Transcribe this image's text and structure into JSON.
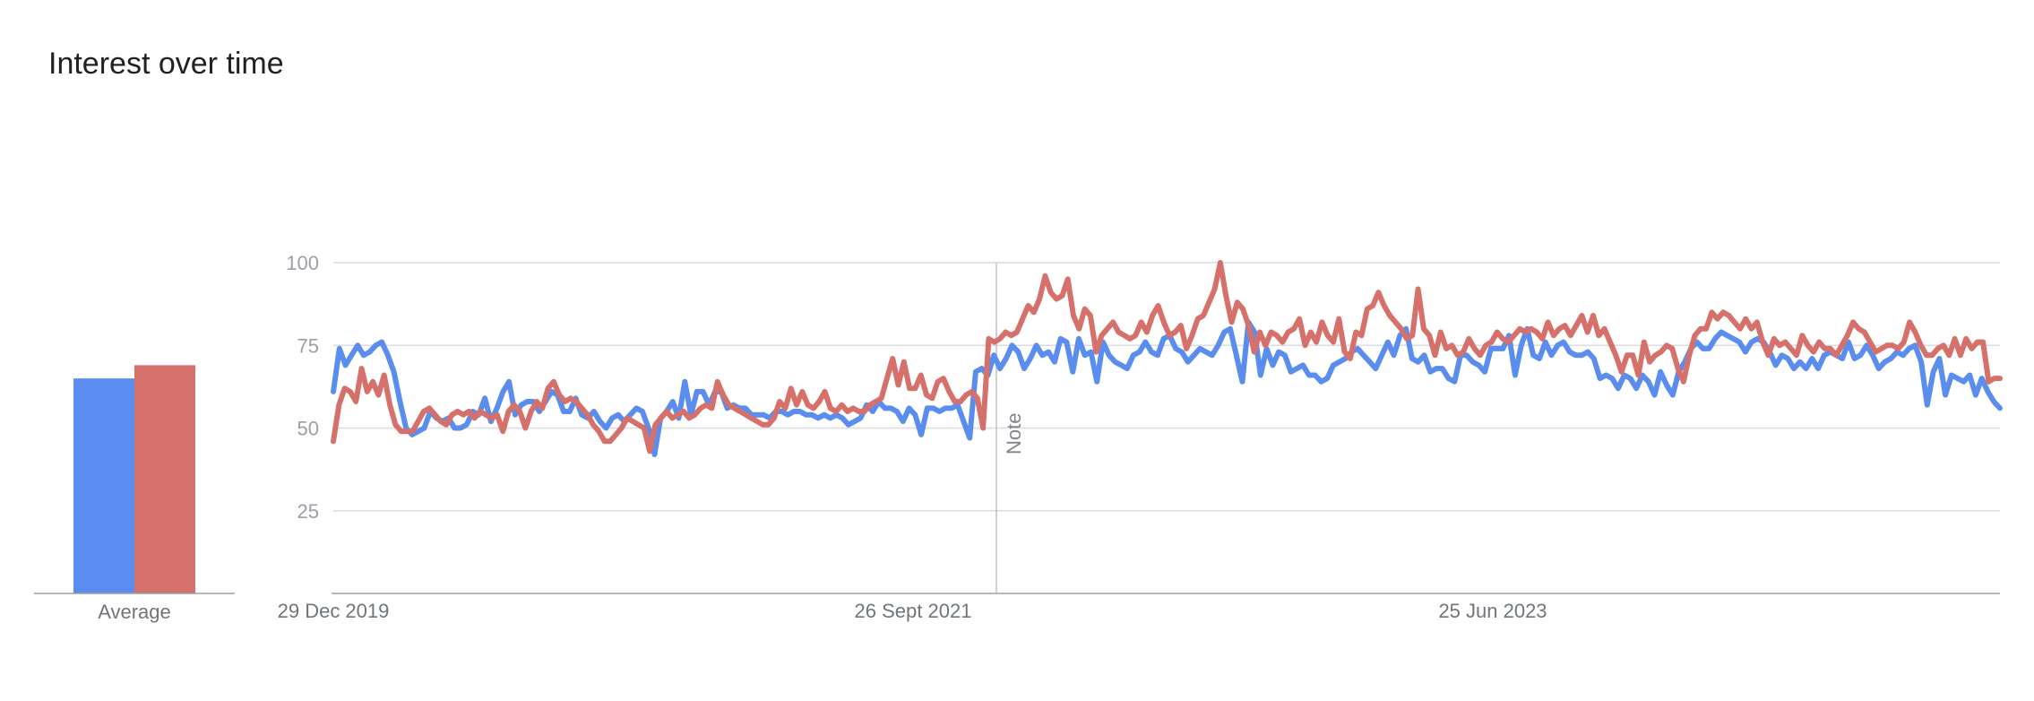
{
  "title": "Interest over time",
  "average_label": "Average",
  "note_label": "Note",
  "colors": {
    "series1": "#5b8def",
    "series2": "#d5706a",
    "grid": "#dadce0",
    "axis": "#9aa0a6"
  },
  "chart_data": {
    "type": "line",
    "title": "Interest over time",
    "x_start": "29 Dec 2019",
    "x_tick_labels": [
      "29 Dec 2019",
      "26 Sept 2021",
      "25 Jun 2023"
    ],
    "y_ticks": [
      25,
      50,
      75,
      100
    ],
    "ylim": [
      0,
      100
    ],
    "note_at": "Jan 2022",
    "averages": [
      65,
      69
    ],
    "series": [
      {
        "color": "#5b8def",
        "values": [
          61,
          74,
          69,
          72,
          75,
          72,
          73,
          75,
          76,
          72,
          67,
          58,
          50,
          48,
          49,
          50,
          55,
          53,
          52,
          53,
          50,
          50,
          51,
          55,
          54,
          59,
          52,
          56,
          61,
          64,
          54,
          57,
          58,
          58,
          55,
          58,
          61,
          60,
          55,
          55,
          59,
          54,
          53,
          55,
          52,
          50,
          53,
          54,
          52,
          54,
          56,
          55,
          50,
          42,
          53,
          55,
          58,
          53,
          64,
          54,
          61,
          61,
          57,
          61,
          61,
          56,
          57,
          56,
          56,
          54,
          54,
          54,
          53,
          55,
          55,
          54,
          55,
          55,
          54,
          54,
          53,
          54,
          53,
          54,
          53,
          51,
          52,
          53,
          57,
          55,
          58,
          56,
          56,
          55,
          52,
          56,
          54,
          48,
          56,
          56,
          55,
          56,
          56,
          57,
          52,
          47,
          67,
          68,
          66,
          72,
          68,
          71,
          75,
          73,
          68,
          71,
          75,
          72,
          73,
          70,
          77,
          76,
          67,
          77,
          72,
          73,
          64,
          76,
          72,
          70,
          69,
          68,
          72,
          73,
          76,
          73,
          72,
          77,
          78,
          74,
          73,
          70,
          72,
          74,
          73,
          72,
          75,
          79,
          80,
          72,
          64,
          82,
          79,
          66,
          74,
          69,
          73,
          72,
          67,
          68,
          69,
          66,
          66,
          64,
          65,
          69,
          70,
          71,
          73,
          74,
          72,
          70,
          68,
          72,
          76,
          72,
          78,
          80,
          71,
          70,
          72,
          67,
          68,
          68,
          65,
          64,
          72,
          72,
          70,
          69,
          67,
          74,
          74,
          74,
          78,
          66,
          75,
          80,
          72,
          71,
          76,
          72,
          75,
          76,
          73,
          72,
          72,
          73,
          71,
          65,
          66,
          65,
          62,
          66,
          65,
          62,
          66,
          64,
          60,
          67,
          63,
          60,
          67,
          70,
          74,
          76,
          74,
          74,
          77,
          79,
          78,
          77,
          76,
          73,
          76,
          77,
          76,
          73,
          69,
          72,
          71,
          68,
          70,
          68,
          71,
          68,
          72,
          73,
          72,
          71,
          76,
          71,
          72,
          75,
          72,
          68,
          70,
          71,
          73,
          72,
          74,
          75,
          70,
          57,
          67,
          71,
          60,
          66,
          65,
          64,
          66,
          60,
          65,
          61,
          58,
          56
        ]
      },
      {
        "color": "#d5706a",
        "values": [
          46,
          57,
          62,
          61,
          58,
          68,
          61,
          64,
          60,
          66,
          57,
          51,
          49,
          49,
          49,
          52,
          55,
          56,
          54,
          52,
          51,
          54,
          55,
          54,
          55,
          53,
          55,
          54,
          53,
          54,
          49,
          55,
          57,
          55,
          50,
          55,
          58,
          56,
          62,
          64,
          60,
          58,
          59,
          58,
          56,
          54,
          51,
          49,
          46,
          46,
          48,
          50,
          53,
          52,
          51,
          50,
          43,
          51,
          53,
          55,
          53,
          54,
          55,
          53,
          54,
          56,
          57,
          56,
          64,
          60,
          57,
          56,
          55,
          54,
          53,
          52,
          51,
          51,
          53,
          58,
          56,
          62,
          57,
          61,
          57,
          56,
          58,
          61,
          56,
          55,
          57,
          55,
          56,
          55,
          55,
          57,
          58,
          59,
          65,
          71,
          63,
          70,
          62,
          62,
          66,
          60,
          59,
          64,
          65,
          61,
          58,
          58,
          60,
          61,
          59,
          50,
          77,
          76,
          77,
          79,
          78,
          79,
          83,
          87,
          85,
          89,
          96,
          91,
          89,
          90,
          95,
          84,
          80,
          86,
          84,
          73,
          78,
          80,
          82,
          79,
          78,
          77,
          78,
          82,
          79,
          84,
          87,
          82,
          78,
          79,
          81,
          74,
          78,
          83,
          84,
          88,
          92,
          100,
          90,
          82,
          88,
          86,
          81,
          73,
          79,
          75,
          79,
          78,
          76,
          79,
          80,
          83,
          75,
          79,
          76,
          82,
          78,
          76,
          83,
          73,
          71,
          79,
          78,
          86,
          87,
          91,
          87,
          84,
          82,
          80,
          77,
          78,
          92,
          80,
          78,
          72,
          79,
          74,
          75,
          72,
          73,
          77,
          74,
          72,
          75,
          76,
          79,
          77,
          76,
          78,
          80,
          79,
          80,
          79,
          77,
          82,
          78,
          80,
          81,
          78,
          81,
          84,
          79,
          84,
          78,
          80,
          76,
          72,
          67,
          72,
          72,
          66,
          76,
          70,
          72,
          73,
          75,
          74,
          68,
          64,
          72,
          78,
          80,
          80,
          85,
          83,
          85,
          84,
          82,
          80,
          83,
          80,
          82,
          76,
          72,
          77,
          75,
          76,
          74,
          72,
          78,
          75,
          73,
          76,
          74,
          74,
          72,
          75,
          78,
          82,
          80,
          79,
          76,
          73,
          74,
          75,
          75,
          74,
          76,
          82,
          79,
          75,
          72,
          72,
          74,
          75,
          72,
          77,
          72,
          77,
          74,
          76,
          76,
          64,
          65,
          65
        ]
      }
    ]
  }
}
